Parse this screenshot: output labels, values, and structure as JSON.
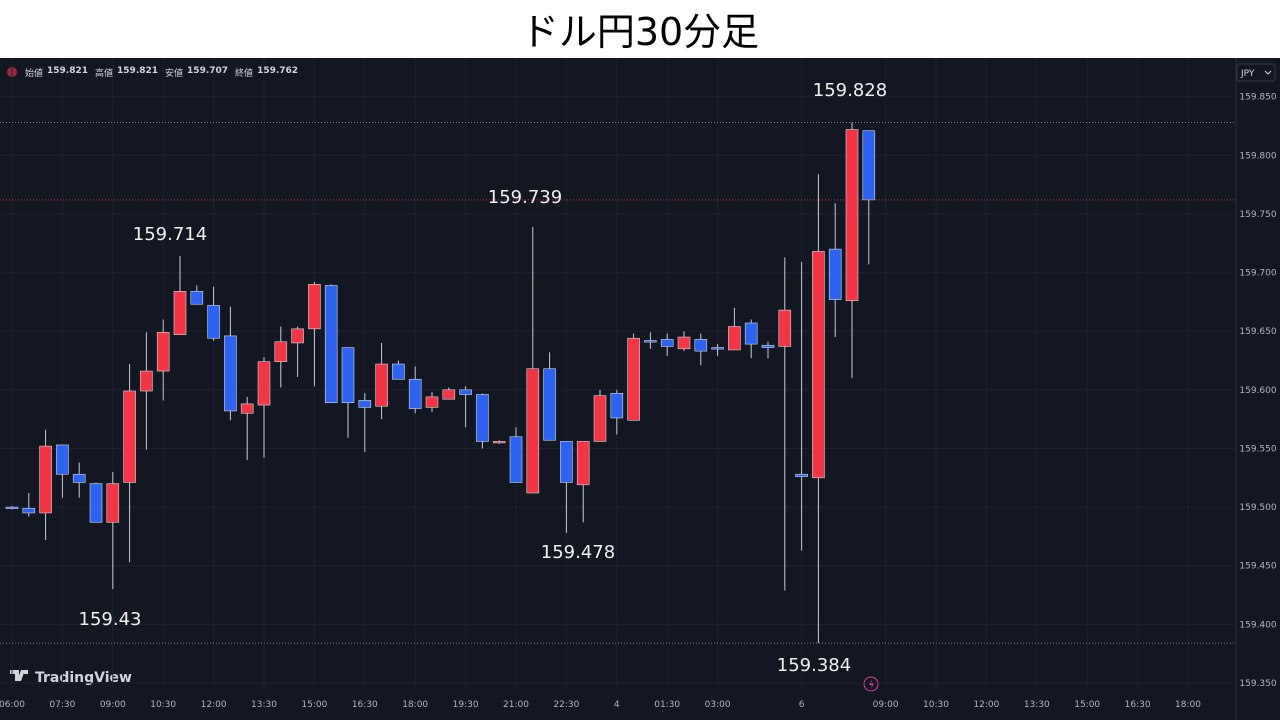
{
  "chart_data": {
    "type": "candlestick",
    "title": "ドル円30分足",
    "symbol_menu": "JPY",
    "brand": "TradingView",
    "ohlc_legend": [
      {
        "label": "始値",
        "value": 159.821
      },
      {
        "label": "高値",
        "value": 159.821
      },
      {
        "label": "安値",
        "value": 159.707
      },
      {
        "label": "終値",
        "value": 159.762
      }
    ],
    "categories": [
      "06:00",
      null,
      null,
      "07:30",
      null,
      null,
      "09:00",
      null,
      null,
      "10:30",
      null,
      null,
      "12:00",
      null,
      null,
      "13:30",
      null,
      null,
      "15:00",
      null,
      null,
      "16:30",
      null,
      null,
      "18:00",
      null,
      null,
      "19:30",
      null,
      null,
      "21:00",
      null,
      null,
      "22:30",
      null,
      null,
      "4",
      null,
      null,
      "01:30",
      null,
      null,
      "03:00",
      null,
      null,
      null,
      null,
      "6",
      null,
      null,
      null,
      null,
      "09:00",
      null,
      null,
      "10:30",
      null,
      null,
      "12:00",
      null,
      null,
      "13:30",
      null,
      null,
      "15:00",
      null,
      null,
      "16:30",
      null,
      null,
      "18:00",
      null,
      null
    ],
    "open": [
      159.5,
      159.499,
      159.495,
      159.553,
      159.528,
      159.52,
      159.487,
      159.521,
      159.599,
      159.616,
      159.647,
      159.684,
      159.672,
      159.646,
      159.58,
      159.587,
      159.624,
      159.64,
      159.652,
      159.689,
      159.636,
      159.591,
      159.586,
      159.622,
      159.609,
      159.585,
      159.592,
      159.6,
      159.596,
      159.555,
      159.56,
      159.512,
      159.618,
      159.556,
      159.519,
      159.556,
      159.597,
      159.574,
      159.642,
      159.643,
      159.635,
      159.643,
      159.636,
      159.634,
      159.657,
      159.638,
      159.637,
      159.528,
      159.525,
      159.72,
      159.676,
      159.821,
      null,
      null,
      null,
      null,
      null,
      null,
      null,
      null,
      null,
      null,
      null,
      null,
      null,
      null,
      null,
      null,
      null,
      null,
      null,
      null,
      null
    ],
    "high": [
      159.501,
      159.512,
      159.566,
      159.553,
      159.538,
      159.521,
      159.53,
      159.622,
      159.649,
      159.66,
      159.714,
      159.689,
      159.688,
      159.671,
      159.594,
      159.628,
      159.654,
      159.654,
      159.692,
      159.69,
      159.636,
      159.597,
      159.64,
      159.625,
      159.62,
      159.598,
      159.602,
      159.603,
      159.597,
      159.557,
      159.568,
      159.739,
      159.632,
      159.556,
      159.556,
      159.6,
      159.6,
      159.648,
      159.649,
      159.648,
      159.65,
      159.648,
      159.639,
      159.67,
      159.66,
      159.641,
      159.713,
      159.709,
      159.784,
      159.759,
      159.828,
      159.821,
      null,
      null,
      null,
      null,
      null,
      null,
      null,
      null,
      null,
      null,
      null,
      null,
      null,
      null,
      null,
      null,
      null,
      null,
      null,
      null,
      null
    ],
    "low": [
      159.498,
      159.492,
      159.472,
      159.508,
      159.508,
      159.487,
      159.43,
      159.453,
      159.549,
      159.591,
      159.647,
      159.673,
      159.642,
      159.574,
      159.54,
      159.542,
      159.602,
      159.611,
      159.603,
      159.589,
      159.559,
      159.547,
      159.575,
      159.609,
      159.58,
      159.581,
      159.592,
      159.568,
      159.55,
      159.554,
      159.521,
      159.512,
      159.557,
      159.478,
      159.487,
      159.556,
      159.562,
      159.574,
      159.635,
      159.629,
      159.633,
      159.621,
      159.629,
      159.634,
      159.627,
      159.627,
      159.429,
      159.463,
      159.384,
      159.645,
      159.61,
      159.707,
      null,
      null,
      null,
      null,
      null,
      null,
      null,
      null,
      null,
      null,
      null,
      null,
      null,
      null,
      null,
      null,
      null,
      null,
      null,
      null,
      null
    ],
    "close": [
      159.499,
      159.495,
      159.552,
      159.528,
      159.521,
      159.487,
      159.52,
      159.599,
      159.616,
      159.649,
      159.684,
      159.673,
      159.644,
      159.582,
      159.588,
      159.624,
      159.641,
      159.652,
      159.69,
      159.589,
      159.589,
      159.585,
      159.622,
      159.609,
      159.584,
      159.594,
      159.6,
      159.596,
      159.556,
      159.556,
      159.521,
      159.618,
      159.557,
      159.521,
      159.556,
      159.595,
      159.576,
      159.644,
      159.641,
      159.637,
      159.645,
      159.633,
      159.635,
      159.654,
      159.639,
      159.636,
      159.668,
      159.526,
      159.718,
      159.677,
      159.822,
      159.762,
      null,
      null,
      null,
      null,
      null,
      null,
      null,
      null,
      null,
      null,
      null,
      null,
      null,
      null,
      null,
      null,
      null,
      null,
      null,
      null,
      null
    ],
    "up_color": "#f23645",
    "down_color": "#2e62f0",
    "ylim": [
      159.344,
      159.883
    ],
    "yticks": [
      {
        "value": 159.35,
        "label": "159.350"
      },
      {
        "value": 159.4,
        "label": "159.400"
      },
      {
        "value": 159.45,
        "label": "159.450"
      },
      {
        "value": 159.5,
        "label": "159.500"
      },
      {
        "value": 159.55,
        "label": "159.550"
      },
      {
        "value": 159.6,
        "label": "159.600"
      },
      {
        "value": 159.65,
        "label": "159.650"
      },
      {
        "value": 159.7,
        "label": "159.700"
      },
      {
        "value": 159.75,
        "label": "159.750"
      },
      {
        "value": 159.8,
        "label": "159.800"
      },
      {
        "value": 159.85,
        "label": "159.850"
      }
    ],
    "annotations": [
      159.828,
      159.739,
      159.714,
      159.478,
      159.43,
      159.384
    ],
    "grid": true
  }
}
